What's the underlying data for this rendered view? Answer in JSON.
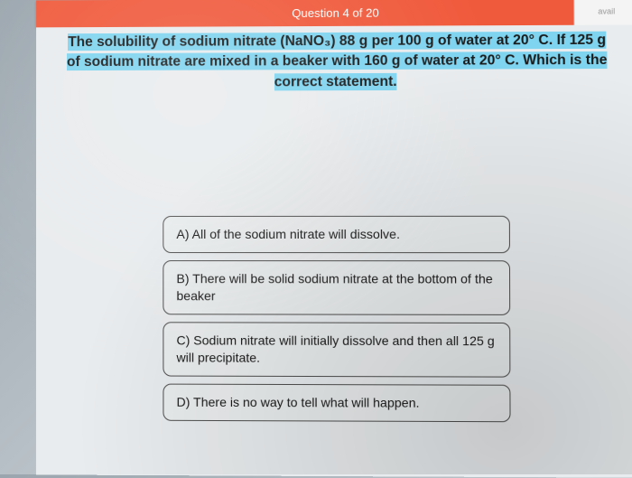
{
  "header": {
    "progress_label": "Question 4 of 20",
    "right_tab": "avail"
  },
  "question": {
    "line1": "The solubility of sodium nitrate (NaNO₃) 88 g per 100 g of water at 20° C.  If 125 g",
    "line2": "of sodium nitrate are mixed in a beaker with 160 g of water at 20° C.  Which is the",
    "line3": "correct statement."
  },
  "answers": {
    "a": "A) All of the sodium nitrate will dissolve.",
    "b": "B) There will be solid sodium nitrate at the bottom of the beaker",
    "c": "C) Sodium nitrate will initially dissolve and then all 125 g will precipitate.",
    "d": "D) There is no way to tell what will happen."
  },
  "colors": {
    "header_bg": "#f05a3c",
    "highlight_bg": "#7fd4f0",
    "content_bg": "#e9ecee",
    "answer_border": "#4f4f4f"
  }
}
